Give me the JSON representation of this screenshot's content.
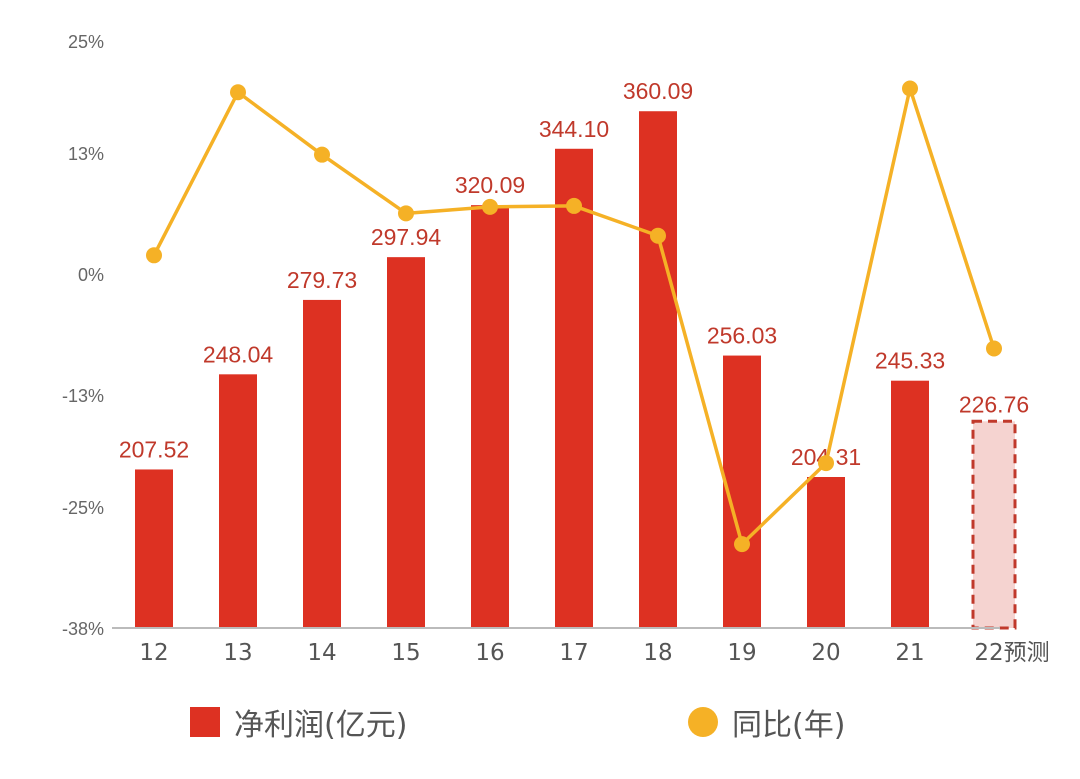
{
  "chart_data": {
    "type": "bar",
    "categories": [
      "12",
      "13",
      "14",
      "15",
      "16",
      "17",
      "18",
      "19",
      "20",
      "21",
      "22预测"
    ],
    "series": [
      {
        "name": "净利润(亿元)",
        "kind": "bar",
        "axis": "left",
        "values": [
          207.52,
          248.04,
          279.73,
          297.94,
          320.09,
          344.1,
          360.09,
          256.03,
          204.31,
          245.33,
          226.76
        ],
        "value_labels": [
          "207.52",
          "248.04",
          "279.73",
          "297.94",
          "320.09",
          "344.10",
          "360.09",
          "256.03",
          "204.31",
          "245.33",
          "226.76"
        ],
        "forecast_last": true,
        "color": "#dd3122",
        "forecast_fill": "#f5d3d0",
        "forecast_border": "#c0392b",
        "label_color": "#c0392b"
      },
      {
        "name": "同比(年)",
        "kind": "line",
        "axis": "right",
        "values": [
          2.0,
          19.5,
          12.8,
          6.5,
          7.2,
          7.3,
          4.1,
          -29.0,
          -20.3,
          19.9,
          -8.0
        ],
        "color": "#f5b126"
      }
    ],
    "y_tick_labels": [
      "25%",
      "13%",
      "0%",
      "-13%",
      "-25%",
      "-38%"
    ],
    "y_ticks": [
      25,
      13,
      0,
      -13,
      -25,
      -38
    ],
    "ylim_percent": [
      -38,
      25
    ],
    "ylim_value": [
      140,
      390
    ],
    "legend_position": "bottom"
  },
  "legend": {
    "bar_label": "净利润(亿元)",
    "line_label": "同比(年)"
  }
}
